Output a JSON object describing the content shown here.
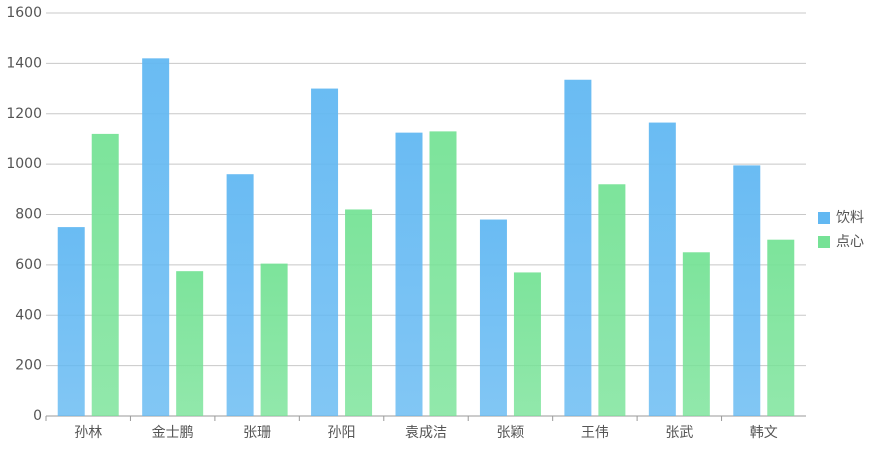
{
  "chart_data": {
    "type": "bar",
    "categories": [
      "孙林",
      "金士鹏",
      "张珊",
      "孙阳",
      "袁成洁",
      "张颖",
      "王伟",
      "张武",
      "韩文"
    ],
    "series": [
      {
        "name": "饮料",
        "color": "#62b8f2",
        "values": [
          750,
          1420,
          960,
          1300,
          1125,
          780,
          1335,
          1165,
          995
        ]
      },
      {
        "name": "点心",
        "color": "#76e296",
        "values": [
          1120,
          575,
          605,
          820,
          1130,
          570,
          920,
          650,
          700
        ]
      }
    ],
    "ylim": [
      0,
      1600
    ],
    "yticks": [
      0,
      200,
      400,
      600,
      800,
      1000,
      1200,
      1400,
      1600
    ],
    "grid": true,
    "legend": "right"
  }
}
